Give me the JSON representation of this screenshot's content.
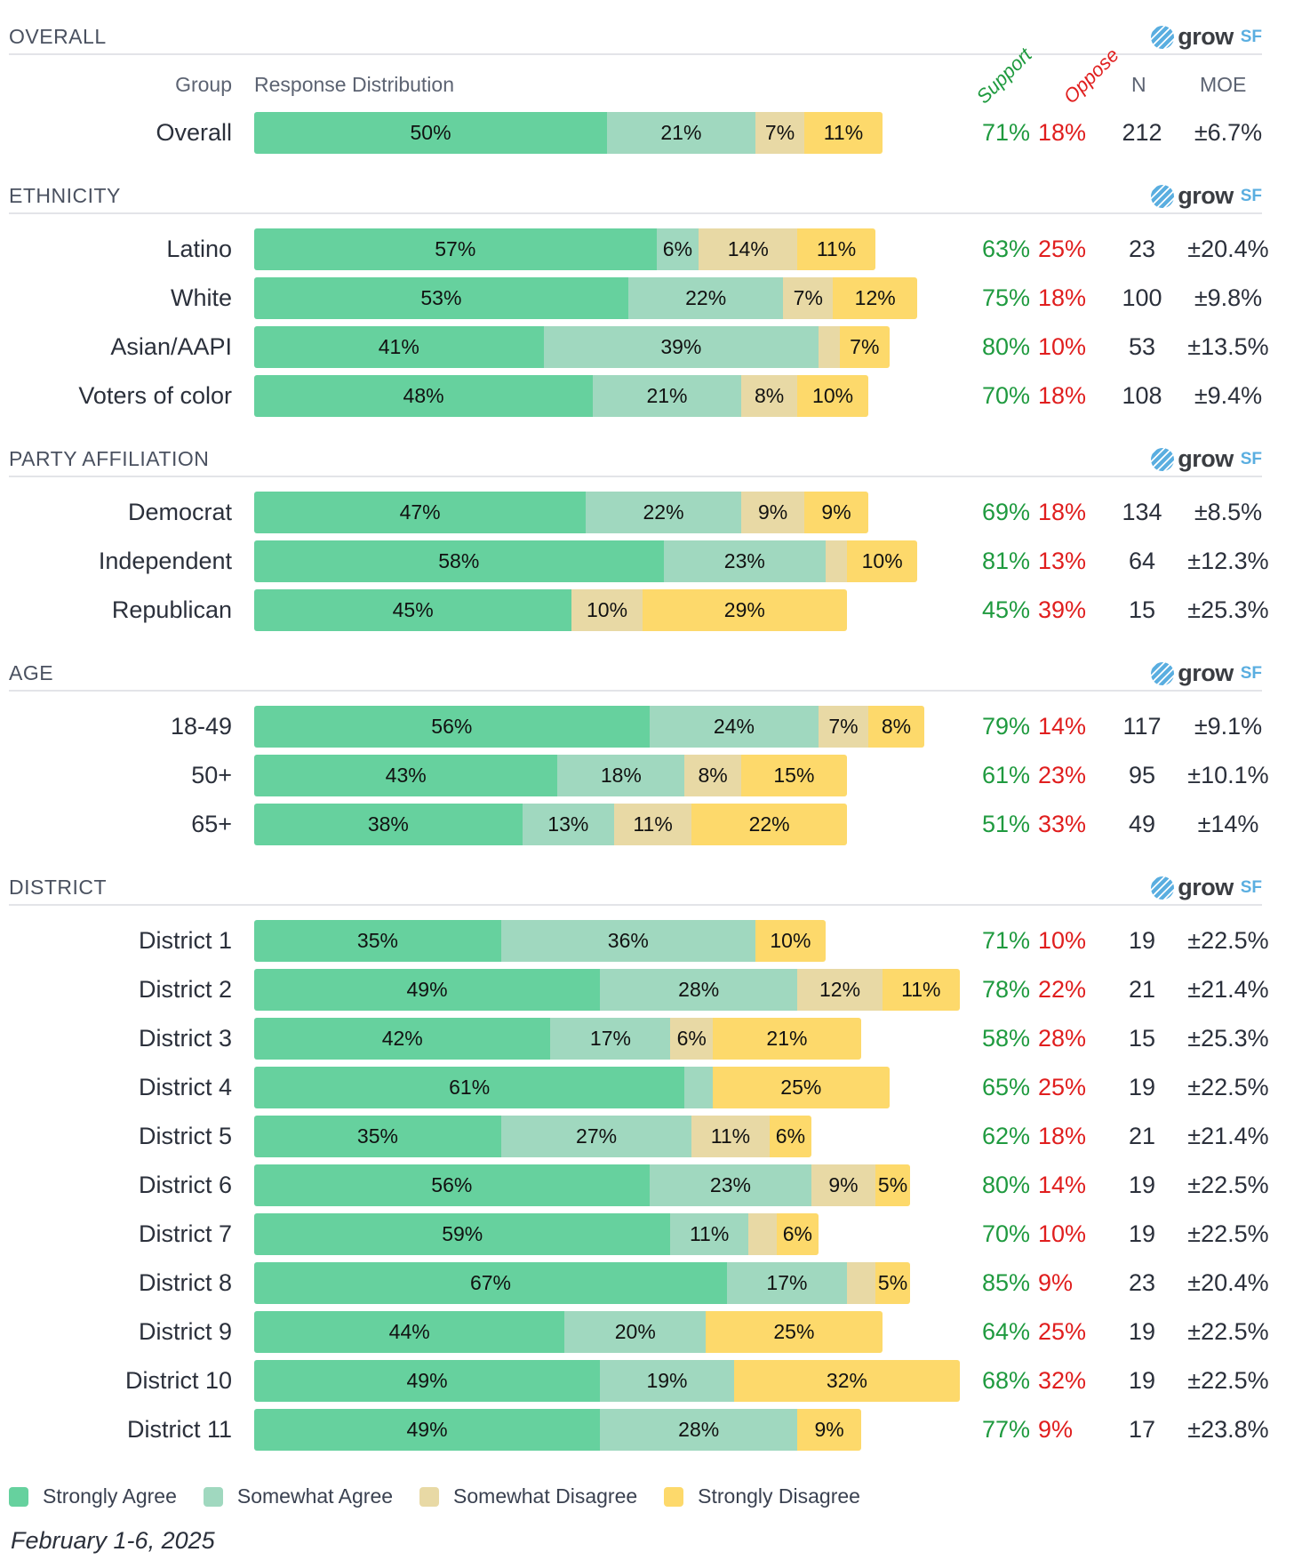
{
  "logo": {
    "word": "grow",
    "suffix": "SF"
  },
  "column_headers": {
    "group": "Group",
    "distribution": "Response Distribution",
    "support": "Support",
    "oppose": "Oppose",
    "n": "N",
    "moe": "MOE"
  },
  "colors": {
    "strongly_agree": "#66d19e",
    "somewhat_agree": "#a0d8bf",
    "somewhat_disagree": "#e8d9a5",
    "strongly_disagree": "#fdd96b",
    "support": "#1f9a3f",
    "oppose": "#e01e1e"
  },
  "legend": [
    {
      "label": "Strongly Agree",
      "color": "#66d19e"
    },
    {
      "label": "Somewhat Agree",
      "color": "#a0d8bf"
    },
    {
      "label": "Somewhat Disagree",
      "color": "#e8d9a5"
    },
    {
      "label": "Strongly Disagree",
      "color": "#fdd96b"
    }
  ],
  "date": "February 1-6, 2025",
  "chart_data": {
    "type": "bar",
    "orientation": "horizontal-stacked",
    "series_names": [
      "Strongly Agree",
      "Somewhat Agree",
      "Somewhat Disagree",
      "Strongly Disagree"
    ],
    "sections": [
      {
        "title": "OVERALL",
        "rows": [
          {
            "group": "Overall",
            "values": [
              50,
              21,
              7,
              11
            ],
            "support": "71%",
            "oppose": "18%",
            "n": "212",
            "moe": "±6.7%"
          }
        ]
      },
      {
        "title": "ETHNICITY",
        "rows": [
          {
            "group": "Latino",
            "values": [
              57,
              6,
              14,
              11
            ],
            "support": "63%",
            "oppose": "25%",
            "n": "23",
            "moe": "±20.4%"
          },
          {
            "group": "White",
            "values": [
              53,
              22,
              7,
              12
            ],
            "support": "75%",
            "oppose": "18%",
            "n": "100",
            "moe": "±9.8%"
          },
          {
            "group": "Asian/AAPI",
            "values": [
              41,
              39,
              3,
              7
            ],
            "support": "80%",
            "oppose": "10%",
            "n": "53",
            "moe": "±13.5%"
          },
          {
            "group": "Voters of color",
            "values": [
              48,
              21,
              8,
              10
            ],
            "support": "70%",
            "oppose": "18%",
            "n": "108",
            "moe": "±9.4%"
          }
        ]
      },
      {
        "title": "PARTY AFFILIATION",
        "rows": [
          {
            "group": "Democrat",
            "values": [
              47,
              22,
              9,
              9
            ],
            "support": "69%",
            "oppose": "18%",
            "n": "134",
            "moe": "±8.5%"
          },
          {
            "group": "Independent",
            "values": [
              58,
              23,
              3,
              10
            ],
            "support": "81%",
            "oppose": "13%",
            "n": "64",
            "moe": "±12.3%"
          },
          {
            "group": "Republican",
            "values": [
              45,
              0,
              10,
              29
            ],
            "support": "45%",
            "oppose": "39%",
            "n": "15",
            "moe": "±25.3%"
          }
        ]
      },
      {
        "title": "AGE",
        "rows": [
          {
            "group": "18-49",
            "values": [
              56,
              24,
              7,
              8
            ],
            "support": "79%",
            "oppose": "14%",
            "n": "117",
            "moe": "±9.1%"
          },
          {
            "group": "50+",
            "values": [
              43,
              18,
              8,
              15
            ],
            "support": "61%",
            "oppose": "23%",
            "n": "95",
            "moe": "±10.1%"
          },
          {
            "group": "65+",
            "values": [
              38,
              13,
              11,
              22
            ],
            "support": "51%",
            "oppose": "33%",
            "n": "49",
            "moe": "±14%"
          }
        ]
      },
      {
        "title": "DISTRICT",
        "rows": [
          {
            "group": "District 1",
            "values": [
              35,
              36,
              0,
              10
            ],
            "support": "71%",
            "oppose": "10%",
            "n": "19",
            "moe": "±22.5%"
          },
          {
            "group": "District 2",
            "values": [
              49,
              28,
              12,
              11
            ],
            "support": "78%",
            "oppose": "22%",
            "n": "21",
            "moe": "±21.4%"
          },
          {
            "group": "District 3",
            "values": [
              42,
              17,
              6,
              21
            ],
            "support": "58%",
            "oppose": "28%",
            "n": "15",
            "moe": "±25.3%"
          },
          {
            "group": "District 4",
            "values": [
              61,
              4,
              0,
              25
            ],
            "support": "65%",
            "oppose": "25%",
            "n": "19",
            "moe": "±22.5%"
          },
          {
            "group": "District 5",
            "values": [
              35,
              27,
              11,
              6
            ],
            "support": "62%",
            "oppose": "18%",
            "n": "21",
            "moe": "±21.4%"
          },
          {
            "group": "District 6",
            "values": [
              56,
              23,
              9,
              5
            ],
            "support": "80%",
            "oppose": "14%",
            "n": "19",
            "moe": "±22.5%"
          },
          {
            "group": "District 7",
            "values": [
              59,
              11,
              4,
              6
            ],
            "support": "70%",
            "oppose": "10%",
            "n": "19",
            "moe": "±22.5%"
          },
          {
            "group": "District 8",
            "values": [
              67,
              17,
              4,
              5
            ],
            "support": "85%",
            "oppose": "9%",
            "n": "23",
            "moe": "±20.4%"
          },
          {
            "group": "District 9",
            "values": [
              44,
              20,
              0,
              25
            ],
            "support": "64%",
            "oppose": "25%",
            "n": "19",
            "moe": "±22.5%"
          },
          {
            "group": "District 10",
            "values": [
              49,
              19,
              0,
              32
            ],
            "support": "68%",
            "oppose": "32%",
            "n": "19",
            "moe": "±22.5%"
          },
          {
            "group": "District 11",
            "values": [
              49,
              28,
              0,
              9
            ],
            "support": "77%",
            "oppose": "9%",
            "n": "17",
            "moe": "±23.8%"
          }
        ]
      }
    ],
    "xlim": [
      0,
      100
    ]
  }
}
